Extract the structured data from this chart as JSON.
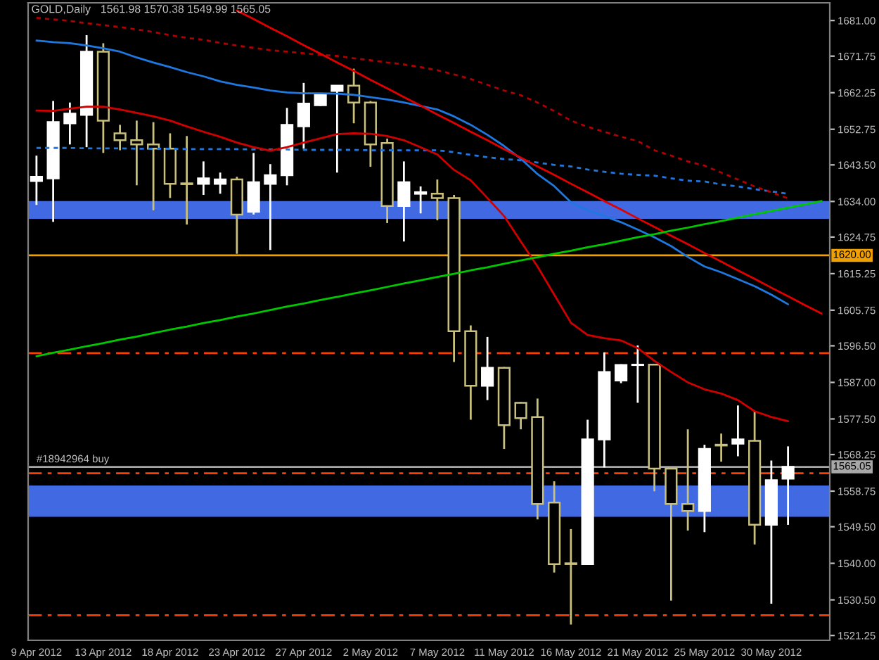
{
  "chart_data": {
    "type": "candlestick",
    "title": "GOLD,Daily",
    "subtitle": "1561.98 1570.38 1549.99 1565.05",
    "categories": [
      "9 Apr 2012",
      null,
      null,
      null,
      "13 Apr 2012",
      null,
      null,
      null,
      "18 Apr 2012",
      null,
      null,
      null,
      "23 Apr 2012",
      null,
      null,
      null,
      "27 Apr 2012",
      null,
      null,
      null,
      "2 May 2012",
      null,
      null,
      null,
      "7 May 2012",
      null,
      null,
      null,
      "11 May 2012",
      null,
      null,
      null,
      "16 May 2012",
      null,
      null,
      null,
      "21 May 2012",
      null,
      null,
      null,
      "25 May 2012",
      null,
      null,
      null,
      "30 May 2012",
      null,
      null,
      null
    ],
    "ohlc": [
      [
        1639.3,
        1645.9,
        1633.1,
        1640.4
      ],
      [
        1640.0,
        1660.1,
        1628.7,
        1654.6
      ],
      [
        1654.3,
        1659.7,
        1648.8,
        1656.8
      ],
      [
        1656.5,
        1677.2,
        1648.1,
        1672.9
      ],
      [
        1672.9,
        1675.1,
        1646.6,
        1655.0
      ],
      [
        1651.7,
        1653.9,
        1647.3,
        1649.9
      ],
      [
        1649.9,
        1655.0,
        1638.2,
        1648.8
      ],
      [
        1648.8,
        1654.6,
        1631.7,
        1647.7
      ],
      [
        1647.7,
        1651.7,
        1634.9,
        1638.6
      ],
      [
        1638.7,
        1651.0,
        1628.0,
        1638.5
      ],
      [
        1638.6,
        1644.4,
        1635.7,
        1640.0
      ],
      [
        1638.6,
        1641.5,
        1636.0,
        1639.7
      ],
      [
        1639.7,
        1640.4,
        1620.4,
        1630.6
      ],
      [
        1631.3,
        1646.6,
        1630.6,
        1639.0
      ],
      [
        1638.6,
        1643.7,
        1621.4,
        1640.8
      ],
      [
        1640.8,
        1658.3,
        1638.2,
        1653.9
      ],
      [
        1653.5,
        1664.8,
        1647.7,
        1659.4
      ],
      [
        1659.0,
        1662.2,
        1658.8,
        1661.9
      ],
      [
        1662.7,
        1664.1,
        1641.5,
        1664.1
      ],
      [
        1664.1,
        1668.5,
        1654.3,
        1659.7
      ],
      [
        1659.7,
        1660.1,
        1643.0,
        1648.8
      ],
      [
        1649.2,
        1650.3,
        1628.4,
        1632.8
      ],
      [
        1632.8,
        1644.4,
        1623.6,
        1639.0
      ],
      [
        1636.0,
        1637.9,
        1630.9,
        1636.4
      ],
      [
        1636.0,
        1639.7,
        1629.1,
        1634.9
      ],
      [
        1634.9,
        1635.7,
        1592.3,
        1600.3
      ],
      [
        1600.3,
        1601.8,
        1577.3,
        1586.1
      ],
      [
        1586.1,
        1598.8,
        1582.4,
        1590.8
      ],
      [
        1590.8,
        1591.0,
        1569.7,
        1575.9
      ],
      [
        1581.7,
        1581.9,
        1574.8,
        1577.7
      ],
      [
        1578.0,
        1582.8,
        1551.4,
        1555.4
      ],
      [
        1555.8,
        1561.3,
        1537.6,
        1539.8
      ],
      [
        1540.0,
        1548.9,
        1524.1,
        1539.8
      ],
      [
        1539.8,
        1577.3,
        1539.6,
        1572.2
      ],
      [
        1572.2,
        1594.8,
        1564.9,
        1589.7
      ],
      [
        1587.5,
        1591.7,
        1586.8,
        1591.5
      ],
      [
        1591.5,
        1596.6,
        1581.7,
        1591.6
      ],
      [
        1591.6,
        1591.8,
        1558.7,
        1564.6
      ],
      [
        1564.6,
        1564.8,
        1530.3,
        1555.4
      ],
      [
        1555.4,
        1574.8,
        1548.5,
        1553.6
      ],
      [
        1553.6,
        1570.8,
        1548.1,
        1569.7
      ],
      [
        1570.8,
        1573.7,
        1566.4,
        1570.6
      ],
      [
        1571.1,
        1581.0,
        1567.8,
        1572.2
      ],
      [
        1571.8,
        1579.5,
        1544.9,
        1550.0
      ],
      [
        1550.0,
        1566.7,
        1529.5,
        1561.6
      ],
      [
        1561.98,
        1570.38,
        1549.99,
        1565.05
      ],
      null,
      null
    ],
    "colors": [
      "#ffffff",
      "#ffffff",
      "#ffffff",
      "#ffffff",
      "#c8c07c",
      "#c8c07c",
      "#c8c07c",
      "#c8c07c",
      "#c8c07c",
      "#c8c07c",
      "#ffffff",
      "#ffffff",
      "#c8c07c",
      "#ffffff",
      "#ffffff",
      "#ffffff",
      "#ffffff",
      "#ffffff",
      "#ffffff",
      "#c8c07c",
      "#c8c07c",
      "#c8c07c",
      "#ffffff",
      "#ffffff",
      "#c8c07c",
      "#c8c07c",
      "#c8c07c",
      "#ffffff",
      "#c8c07c",
      "#c8c07c",
      "#c8c07c",
      "#c8c07c",
      "#c8c07c",
      "#ffffff",
      "#ffffff",
      "#ffffff",
      "#ffffff",
      "#c8c07c",
      "#c8c07c",
      "#c8c07c",
      "#ffffff",
      "#c8c07c",
      "#ffffff",
      "#c8c07c",
      "#ffffff",
      "#ffffff",
      null,
      null
    ],
    "series": [
      {
        "type": "line",
        "color": "#1e78e0",
        "values": [
          1675.8,
          1675.4,
          1675.1,
          1674.5,
          1673.8,
          1672.9,
          1671.4,
          1670.1,
          1668.9,
          1667.6,
          1666.5,
          1665.2,
          1664.3,
          1663.6,
          1662.8,
          1662.3,
          1662.1,
          1662.1,
          1662.0,
          1661.7,
          1661.1,
          1660.5,
          1659.7,
          1658.8,
          1657.9,
          1656.1,
          1653.9,
          1651.3,
          1648.4,
          1645.1,
          1641.1,
          1638.0,
          1633.8,
          1631.7,
          1630.2,
          1628.6,
          1626.7,
          1624.7,
          1622.4,
          1619.6,
          1617.1,
          1615.6,
          1613.8,
          1612.0,
          1609.8,
          1607.3,
          null,
          null
        ]
      },
      {
        "type": "line",
        "color": "#1e78e0",
        "line_style": "dotted",
        "values": [
          1647.9,
          1647.9,
          1647.9,
          1647.8,
          1647.8,
          1647.8,
          1647.7,
          1647.7,
          1647.7,
          1647.6,
          1647.6,
          1647.6,
          1647.6,
          1647.5,
          1647.5,
          1647.5,
          1647.4,
          1647.4,
          1647.4,
          1647.4,
          1647.3,
          1647.3,
          1647.3,
          1647.3,
          1647.3,
          1646.8,
          1646.1,
          1645.5,
          1645.0,
          1644.7,
          1644.1,
          1643.5,
          1643.1,
          1642.3,
          1641.7,
          1641.2,
          1640.9,
          1640.7,
          1640.0,
          1639.4,
          1639.2,
          1638.4,
          1637.9,
          1637.2,
          1636.6,
          1636.0,
          null,
          null
        ]
      },
      {
        "type": "line",
        "color": "#b00000",
        "line_style": "dotted",
        "values": [
          1681.7,
          1681.3,
          1680.9,
          1680.3,
          1679.8,
          1679.3,
          1678.7,
          1678.0,
          1677.2,
          1676.5,
          1676.0,
          1675.2,
          1674.5,
          1673.9,
          1673.3,
          1672.9,
          1672.5,
          1672.1,
          1671.8,
          1671.2,
          1670.7,
          1670.1,
          1669.6,
          1668.9,
          1668.1,
          1667.0,
          1665.8,
          1664.3,
          1662.8,
          1661.6,
          1659.7,
          1657.5,
          1655.0,
          1653.4,
          1652.1,
          1650.8,
          1649.7,
          1647.3,
          1645.9,
          1644.4,
          1643.3,
          1641.5,
          1639.7,
          1637.9,
          1636.4,
          1634.8,
          null,
          null
        ]
      },
      {
        "type": "line",
        "color": "#d00000",
        "values": [
          1657.6,
          1657.5,
          1658.1,
          1658.6,
          1658.6,
          1657.9,
          1657.0,
          1656.1,
          1655.0,
          1653.5,
          1652.1,
          1650.8,
          1649.3,
          1648.1,
          1647.2,
          1648.1,
          1649.3,
          1650.4,
          1651.5,
          1651.7,
          1651.6,
          1651.0,
          1649.9,
          1648.1,
          1646.2,
          1642.2,
          1639.5,
          1634.9,
          1630.2,
          1623.6,
          1617.1,
          1609.8,
          1602.5,
          1599.3,
          1598.5,
          1597.9,
          1595.9,
          1592.6,
          1589.7,
          1587.0,
          1585.2,
          1584.1,
          1582.4,
          1579.5,
          1578.0,
          1576.9,
          null,
          null
        ]
      },
      {
        "type": "line",
        "color": "#e00000",
        "values": [
          null,
          null,
          null,
          null,
          null,
          null,
          null,
          null,
          null,
          null,
          null,
          null,
          1683.6,
          1681.4,
          1679.1,
          1676.9,
          1674.6,
          1672.4,
          1670.1,
          1667.9,
          1665.6,
          1663.4,
          1661.1,
          1658.9,
          1656.6,
          1654.4,
          1652.1,
          1649.9,
          1647.6,
          1645.4,
          1643.1,
          1640.9,
          1638.6,
          1636.4,
          1634.1,
          1631.9,
          1629.6,
          1627.4,
          1625.1,
          1622.9,
          1620.6,
          1618.4,
          1616.1,
          1613.9,
          1611.6,
          1609.4,
          1607.1,
          1604.9
        ]
      },
      {
        "type": "line",
        "color": "#00c800",
        "values": [
          1593.8,
          1594.7,
          1595.5,
          1596.4,
          1597.2,
          1598.1,
          1598.9,
          1599.8,
          1600.7,
          1601.5,
          1602.4,
          1603.2,
          1604.1,
          1604.9,
          1605.8,
          1606.7,
          1607.5,
          1608.4,
          1609.2,
          1610.1,
          1610.9,
          1611.8,
          1612.7,
          1613.5,
          1614.4,
          1615.2,
          1616.1,
          1616.9,
          1617.8,
          1618.7,
          1619.5,
          1620.4,
          1621.2,
          1622.1,
          1622.9,
          1623.8,
          1624.7,
          1625.5,
          1626.4,
          1627.2,
          1628.1,
          1628.9,
          1629.8,
          1630.7,
          1631.5,
          1632.4,
          1633.2,
          1634.1
        ]
      }
    ],
    "ylim": [
      1520.0,
      1685.6
    ],
    "yticks": [
      {
        "value": 1521.25,
        "label": "1521.25"
      },
      {
        "value": 1530.5,
        "label": "1530.50"
      },
      {
        "value": 1540,
        "label": "1540.00"
      },
      {
        "value": 1549.5,
        "label": "1549.50"
      },
      {
        "value": 1558.75,
        "label": "1558.75"
      },
      {
        "value": 1568.25,
        "label": "1568.25"
      },
      {
        "value": 1577.5,
        "label": "1577.50"
      },
      {
        "value": 1587,
        "label": "1587.00"
      },
      {
        "value": 1596.5,
        "label": "1596.50"
      },
      {
        "value": 1605.75,
        "label": "1605.75"
      },
      {
        "value": 1615.25,
        "label": "1615.25"
      },
      {
        "value": 1624.75,
        "label": "1624.75"
      },
      {
        "value": 1634,
        "label": "1634.00"
      },
      {
        "value": 1643.5,
        "label": "1643.50"
      },
      {
        "value": 1652.75,
        "label": "1652.75"
      },
      {
        "value": 1662.25,
        "label": "1662.25"
      },
      {
        "value": 1671.75,
        "label": "1671.75"
      },
      {
        "value": 1681,
        "label": "1681.00"
      }
    ],
    "bands": [
      {
        "axis": "y",
        "from": 1629.5,
        "to": 1634.1,
        "color": "#4169e1"
      },
      {
        "axis": "y",
        "from": 1552.1,
        "to": 1560.2,
        "color": "#4169e1"
      }
    ],
    "ref_lines": [
      {
        "axis": "y",
        "value": 1620.0,
        "label": "1620.00",
        "color": "#f0a000"
      },
      {
        "axis": "y",
        "value": 1565.05,
        "label": "1565.05",
        "color": "#a8a8a8"
      },
      {
        "axis": "y",
        "value": 1594.6,
        "color": "#ff3c00",
        "line_style": "dashed"
      },
      {
        "axis": "y",
        "value": 1563.4,
        "color": "#ff3c00",
        "line_style": "dashed"
      },
      {
        "axis": "y",
        "value": 1526.5,
        "color": "#ff3c00",
        "line_style": "dashed"
      }
    ],
    "annotations": [
      {
        "text": "#18942964 buy",
        "x": "9 Apr 2012",
        "y": 1565.05
      }
    ]
  }
}
